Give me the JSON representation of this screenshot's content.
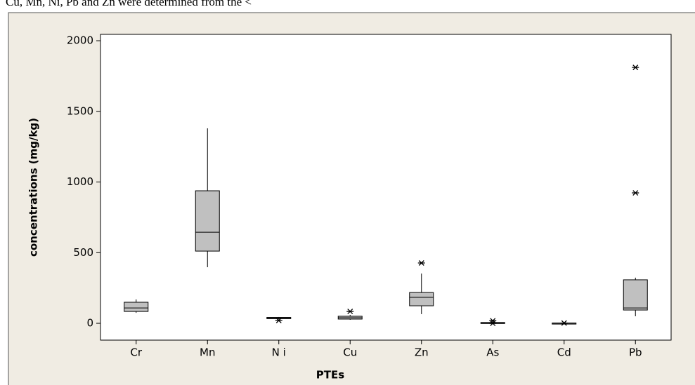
{
  "document_text": "Cu, Mn, Ni, Pb and Zn were determined from the <",
  "chart_data": {
    "type": "box",
    "x_label": "PTEs",
    "y_label": "concentrations (mg/kg)",
    "categories": [
      "Cr",
      "Mn",
      "N i",
      "Cu",
      "Zn",
      "As",
      "Cd",
      "Pb"
    ],
    "boxes": [
      {
        "min": 74,
        "q1": 84,
        "median": 109,
        "q3": 149,
        "max": 169,
        "outliers": []
      },
      {
        "min": 397,
        "q1": 511,
        "median": 645,
        "q3": 938,
        "max": 1380,
        "outliers": []
      },
      {
        "min": 28,
        "q1": 33,
        "median": 37,
        "q3": 42,
        "max": 45,
        "outliers": [
          20
        ]
      },
      {
        "min": 25,
        "q1": 30,
        "median": 40,
        "q3": 50,
        "max": 60,
        "outliers": [
          84
        ]
      },
      {
        "min": 65,
        "q1": 124,
        "median": 184,
        "q3": 218,
        "max": 352,
        "outliers": [
          427
        ]
      },
      {
        "min": 0,
        "q1": 2,
        "median": 4,
        "q3": 6,
        "max": 10,
        "outliers": [
          18,
          0
        ]
      },
      {
        "min": 0,
        "q1": 0.5,
        "median": 1,
        "q3": 2,
        "max": 3,
        "outliers": [
          2
        ]
      },
      {
        "min": 50,
        "q1": 94,
        "median": 109,
        "q3": 308,
        "max": 323,
        "outliers": [
          923,
          1811
        ]
      }
    ],
    "box_color": "#c0c0c0",
    "ylim": [
      -119,
      2045
    ],
    "yticks": [
      0,
      500,
      1000,
      1500,
      2000
    ]
  }
}
